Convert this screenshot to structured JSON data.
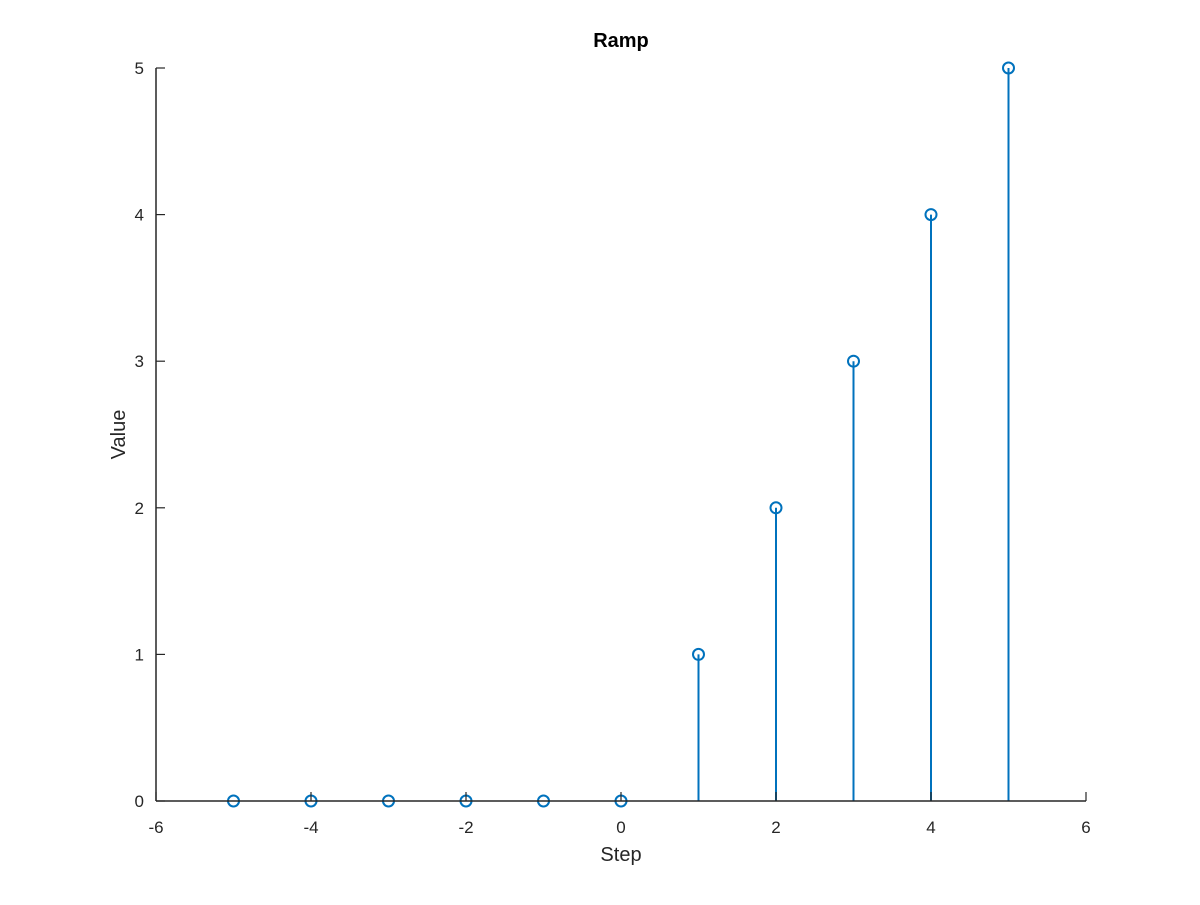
{
  "chart_data": {
    "type": "stem",
    "title": "Ramp",
    "xlabel": "Step",
    "ylabel": "Value",
    "xlim": [
      -6,
      6
    ],
    "ylim": [
      0,
      5
    ],
    "grid": false,
    "x_ticks": [
      "-6",
      "-4",
      "-2",
      "0",
      "2",
      "4",
      "6"
    ],
    "y_ticks": [
      "0",
      "1",
      "2",
      "3",
      "4",
      "5"
    ],
    "series": [
      {
        "color": "#0072BD",
        "marker": "circle-open",
        "x": [
          -5,
          -4,
          -3,
          -2,
          -1,
          0,
          1,
          2,
          3,
          4,
          5
        ],
        "values": [
          0,
          0,
          0,
          0,
          0,
          0,
          1,
          2,
          3,
          4,
          5
        ]
      }
    ]
  }
}
